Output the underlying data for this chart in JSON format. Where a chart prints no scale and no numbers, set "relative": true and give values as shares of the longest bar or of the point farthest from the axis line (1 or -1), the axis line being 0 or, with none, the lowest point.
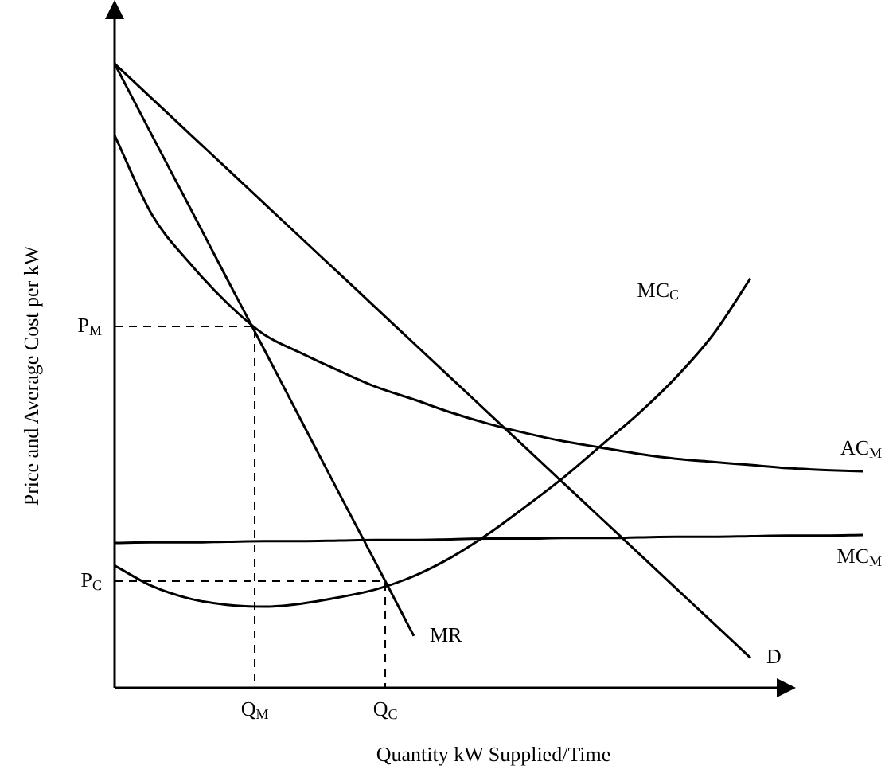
{
  "chart_data": {
    "type": "line",
    "relative": true,
    "legend": false,
    "xlabel": "Quantity kW Supplied/Time",
    "ylabel": "Price and Average Cost per kW",
    "categories": [
      null,
      null,
      null,
      null,
      null,
      null,
      null,
      null,
      null,
      null,
      null,
      null,
      null,
      null,
      null,
      null,
      null,
      null,
      null,
      null,
      null
    ],
    "series": [
      {
        "name": "D",
        "color": "#000000",
        "values": [
          1,
          0.944,
          0.888,
          0.832,
          0.776,
          0.72,
          0.664,
          0.608,
          0.552,
          0.496,
          0.44,
          0.384,
          0.328,
          0.272,
          0.216,
          0.16,
          0.104,
          0.048,
          null,
          null,
          null
        ]
      },
      {
        "name": "MR",
        "color": "#000000",
        "values": [
          1,
          0.885,
          0.771,
          0.656,
          0.542,
          0.427,
          0.312,
          0.198,
          0.083,
          null,
          null,
          null,
          null,
          null,
          null,
          null,
          null,
          null,
          null,
          null,
          null
        ]
      },
      {
        "name": "AC$_{M}$",
        "color": "#000000",
        "values": [
          0.885,
          0.758,
          0.681,
          0.617,
          0.566,
          0.536,
          0.508,
          0.482,
          0.462,
          0.441,
          0.423,
          0.408,
          0.395,
          0.385,
          0.375,
          0.367,
          0.362,
          0.357,
          0.352,
          0.349,
          0.347
        ]
      },
      {
        "name": "MC$_{M}$",
        "color": "#000000",
        "values": [
          0.232,
          0.233,
          0.233,
          0.234,
          0.235,
          0.235,
          0.236,
          0.237,
          0.237,
          0.238,
          0.239,
          0.239,
          0.24,
          0.24,
          0.241,
          0.242,
          0.242,
          0.243,
          0.244,
          0.244,
          0.245
        ]
      },
      {
        "name": "MC$_{C}$",
        "color": "#000000",
        "values": [
          0.196,
          0.163,
          0.143,
          0.133,
          0.13,
          0.135,
          0.145,
          0.158,
          0.179,
          0.209,
          0.247,
          0.291,
          0.337,
          0.388,
          0.439,
          0.497,
          0.566,
          0.656,
          null,
          null,
          null
        ]
      }
    ],
    "ref_lines": [
      {
        "axis": "y",
        "value": 0.579,
        "label": "P$_{M}$",
        "line_style": "dashed"
      },
      {
        "axis": "y",
        "value": 0.171,
        "label": "P$_{C}$",
        "line_style": "dashed"
      }
    ],
    "annotations": [
      "Q$_{M}$",
      "Q$_{C}$"
    ]
  }
}
